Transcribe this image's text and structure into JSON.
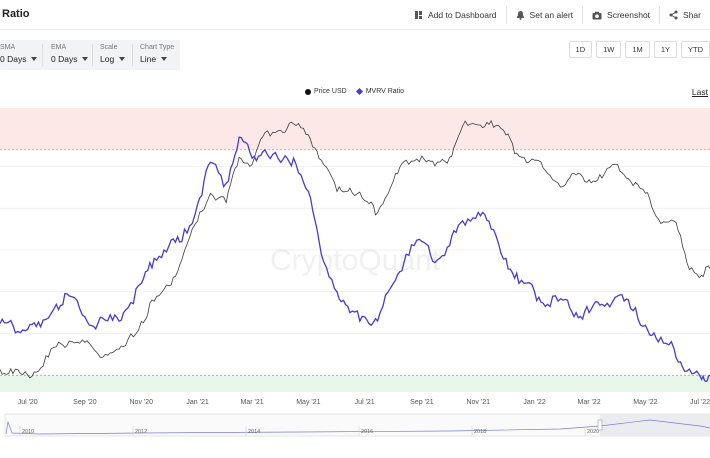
{
  "header": {
    "title": "Ratio",
    "actions": [
      {
        "label": "Add to Dashboard",
        "icon": "dashboard-icon"
      },
      {
        "label": "Set an alert",
        "icon": "alert-icon"
      },
      {
        "label": "Screenshot",
        "icon": "camera-icon"
      },
      {
        "label": "Shar",
        "icon": "share-icon"
      }
    ]
  },
  "controls": {
    "sma": {
      "label": "SMA",
      "value": "0 Days"
    },
    "ema": {
      "label": "EMA",
      "value": "0 Days"
    },
    "scale": {
      "label": "Scale",
      "value": "Log"
    },
    "chart_type": {
      "label": "Chart Type",
      "value": "Line"
    }
  },
  "ranges": [
    "1D",
    "1W",
    "1M",
    "1Y",
    "YTD"
  ],
  "last_link": "Last",
  "watermark": "CryptoQuant",
  "colors": {
    "price": "#3d3d3d",
    "mvrv": "#4a3cc9",
    "red_band": "#fde8e8",
    "green_band": "#e8f6ea"
  },
  "chart_data": {
    "type": "line",
    "legend_position": "top-center",
    "legend": [
      "Price USD",
      "MVRV Ratio"
    ],
    "x_ticks": [
      "Jul '20",
      "Sep '20",
      "Nov '20",
      "Jan '21",
      "Mar '21",
      "May '21",
      "Jul '21",
      "Sep '21",
      "Nov '21",
      "Jan '22",
      "Mar '22",
      "May '22",
      "Jul '22"
    ],
    "x": [
      "2020-06-01",
      "2020-06-15",
      "2020-07-01",
      "2020-07-15",
      "2020-08-01",
      "2020-08-15",
      "2020-09-01",
      "2020-09-15",
      "2020-10-01",
      "2020-10-15",
      "2020-11-01",
      "2020-11-15",
      "2020-12-01",
      "2020-12-15",
      "2021-01-01",
      "2021-01-15",
      "2021-02-01",
      "2021-02-15",
      "2021-03-01",
      "2021-03-15",
      "2021-04-01",
      "2021-04-15",
      "2021-05-01",
      "2021-05-15",
      "2021-06-01",
      "2021-06-15",
      "2021-07-01",
      "2021-07-15",
      "2021-08-01",
      "2021-08-15",
      "2021-09-01",
      "2021-09-15",
      "2021-10-01",
      "2021-10-15",
      "2021-11-01",
      "2021-11-15",
      "2021-12-01",
      "2021-12-15",
      "2022-01-01",
      "2022-01-15",
      "2022-02-01",
      "2022-02-15",
      "2022-03-01",
      "2022-03-15",
      "2022-04-01",
      "2022-04-15",
      "2022-05-01",
      "2022-05-15",
      "2022-06-01",
      "2022-06-15",
      "2022-07-01",
      "2022-07-10"
    ],
    "series": [
      {
        "name": "MVRV Ratio",
        "values": [
          1.62,
          1.6,
          1.55,
          1.58,
          1.85,
          1.95,
          1.7,
          1.62,
          1.66,
          1.78,
          2.1,
          2.4,
          2.55,
          2.6,
          3.05,
          3.55,
          3.3,
          3.85,
          3.6,
          3.7,
          3.55,
          3.6,
          3.2,
          2.45,
          2.0,
          1.75,
          1.7,
          1.65,
          2.1,
          2.45,
          2.6,
          2.35,
          2.55,
          2.85,
          2.95,
          2.75,
          2.4,
          2.1,
          2.0,
          1.85,
          1.9,
          1.75,
          1.75,
          1.85,
          1.95,
          1.8,
          1.6,
          1.4,
          1.32,
          1.05,
          0.95,
          1.0
        ]
      },
      {
        "name": "Price USD",
        "values": [
          9500,
          9200,
          9100,
          9600,
          11300,
          11800,
          11700,
          10700,
          10800,
          11400,
          13700,
          16000,
          18000,
          22000,
          29500,
          36500,
          34000,
          48000,
          45500,
          58000,
          59000,
          62000,
          57000,
          47000,
          37000,
          38000,
          34500,
          31500,
          40000,
          47000,
          48500,
          45000,
          48000,
          61000,
          61500,
          63500,
          57000,
          48500,
          47000,
          42500,
          38500,
          42000,
          40500,
          41000,
          45500,
          40000,
          36500,
          30000,
          29500,
          21500,
          19500,
          20500
        ]
      }
    ]
  }
}
